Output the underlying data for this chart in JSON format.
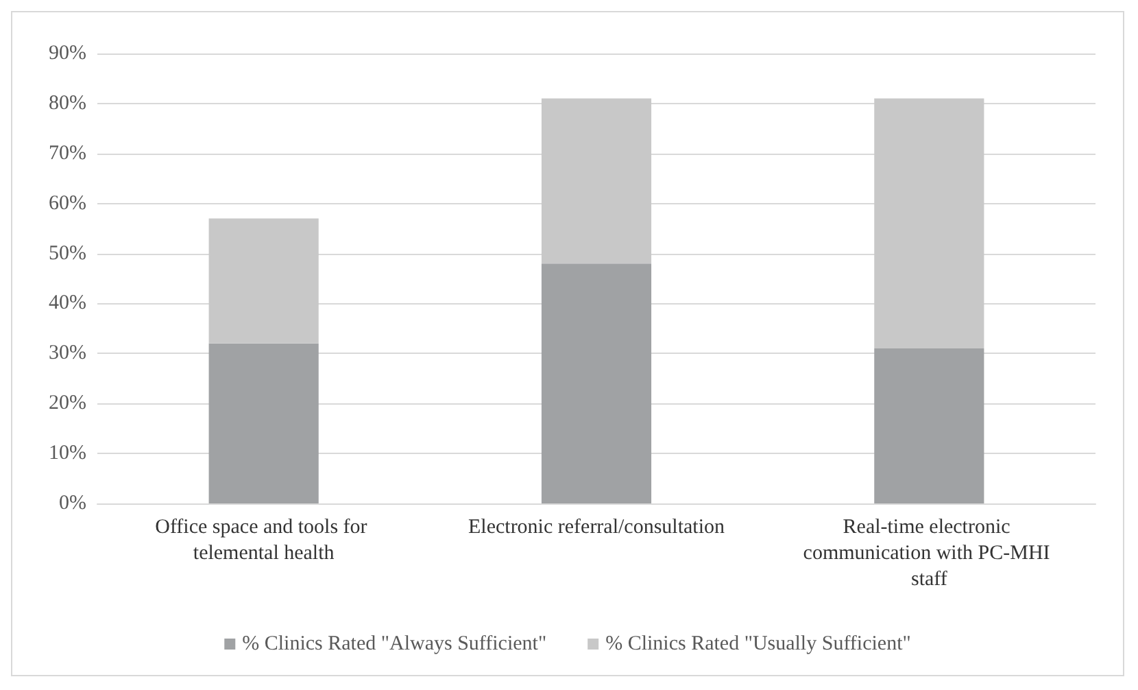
{
  "chart_data": {
    "type": "bar",
    "stacked": true,
    "categories": [
      "Office space and tools for telemental health",
      "Electronic referral/consultation",
      "Real-time electronic communication with PC-MHI staff"
    ],
    "series": [
      {
        "name": "% Clinics Rated \"Always Sufficient\"",
        "color": "#a0a2a4",
        "values": [
          32,
          48,
          31
        ]
      },
      {
        "name": "% Clinics Rated \"Usually Sufficient\"",
        "color": "#c8c8c8",
        "values": [
          25,
          33,
          50
        ]
      }
    ],
    "ylim": [
      0,
      90
    ],
    "yticks": [
      {
        "value": 0,
        "label": "0%"
      },
      {
        "value": 10,
        "label": "10%"
      },
      {
        "value": 20,
        "label": "20%"
      },
      {
        "value": 30,
        "label": "30%"
      },
      {
        "value": 40,
        "label": "40%"
      },
      {
        "value": 50,
        "label": "50%"
      },
      {
        "value": 60,
        "label": "60%"
      },
      {
        "value": 70,
        "label": "70%"
      },
      {
        "value": 80,
        "label": "80%"
      },
      {
        "value": 90,
        "label": "90%"
      }
    ],
    "grid": "y",
    "legend": "bottom"
  }
}
